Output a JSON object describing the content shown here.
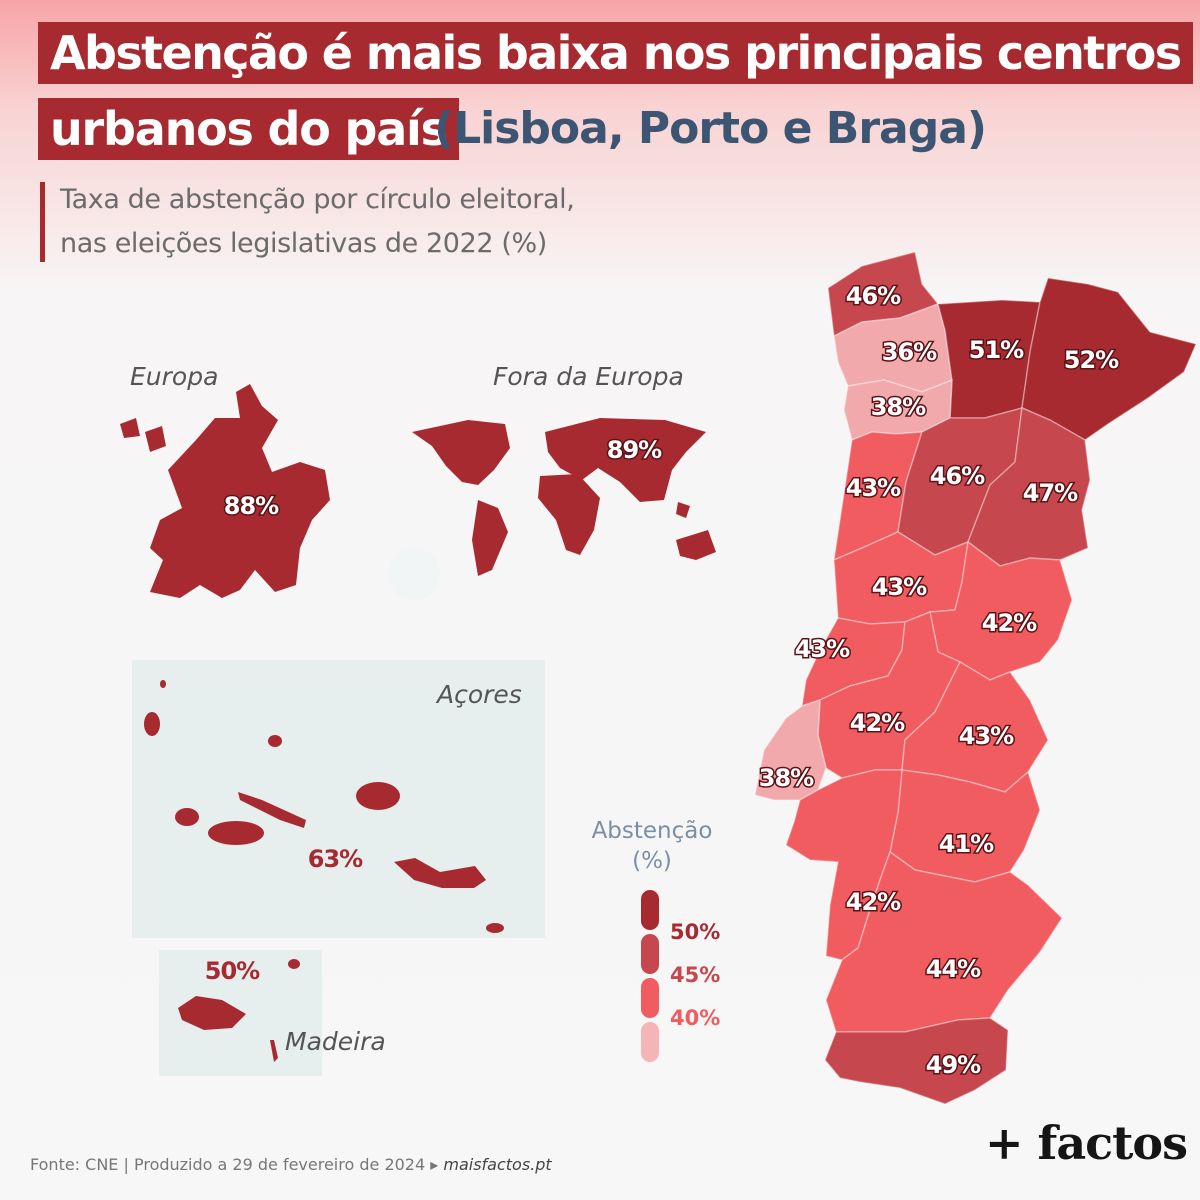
{
  "title": {
    "line1": "Abstenção é mais baixa nos principais centros",
    "line2": "urbanos do país",
    "line3": "(Lisboa, Porto e Braga)"
  },
  "subtitle": {
    "line1": "Taxa de abstenção por círculo eleitoral,",
    "line2": "nas eleições legislativas de 2022 (%)"
  },
  "regions": {
    "europa": {
      "label": "Europa",
      "value": "88%"
    },
    "fora_europa": {
      "label": "Fora da Europa",
      "value": "89%"
    },
    "acores": {
      "label": "Açores",
      "value": "63%"
    },
    "madeira": {
      "label": "Madeira",
      "value": "50%"
    }
  },
  "districts": [
    {
      "id": "viana",
      "value": "46%",
      "color": "#c6474d"
    },
    {
      "id": "braga",
      "value": "36%",
      "color": "#f2a9ab"
    },
    {
      "id": "vila-real",
      "value": "51%",
      "color": "#a82a31"
    },
    {
      "id": "braganca",
      "value": "52%",
      "color": "#a82a31"
    },
    {
      "id": "porto",
      "value": "38%",
      "color": "#f2a9ab"
    },
    {
      "id": "aveiro",
      "value": "43%",
      "color": "#f05c60"
    },
    {
      "id": "viseu",
      "value": "46%",
      "color": "#c6474d"
    },
    {
      "id": "guarda",
      "value": "47%",
      "color": "#c6474d"
    },
    {
      "id": "coimbra",
      "value": "43%",
      "color": "#f05c60"
    },
    {
      "id": "castelo-branco",
      "value": "42%",
      "color": "#f05c60"
    },
    {
      "id": "leiria",
      "value": "43%",
      "color": "#f05c60"
    },
    {
      "id": "santarem",
      "value": "42%",
      "color": "#f05c60"
    },
    {
      "id": "portalegre",
      "value": "43%",
      "color": "#f05c60"
    },
    {
      "id": "lisboa",
      "value": "38%",
      "color": "#f2a9ab"
    },
    {
      "id": "evora",
      "value": "41%",
      "color": "#f05c60"
    },
    {
      "id": "setubal",
      "value": "42%",
      "color": "#f05c60"
    },
    {
      "id": "beja",
      "value": "44%",
      "color": "#f05c60"
    },
    {
      "id": "faro",
      "value": "49%",
      "color": "#c6474d"
    }
  ],
  "legend": {
    "title": "Abstenção (%)",
    "items": [
      {
        "label": "50%",
        "color": "#a82a31"
      },
      {
        "label": "45%",
        "color": "#c6474d"
      },
      {
        "label": "40%",
        "color": "#f05c60"
      },
      {
        "label": "",
        "color": "#f5b5b7"
      }
    ]
  },
  "colors": {
    "dark_red": "#a82a31",
    "title_blue": "#3c5572",
    "inset_bg": "#e6eeee"
  },
  "source": {
    "text": "Fonte: CNE | Produzido a 29 de fevereiro de 2024 ▸",
    "link": "maisfactos.pt"
  },
  "logo": "+ factos"
}
